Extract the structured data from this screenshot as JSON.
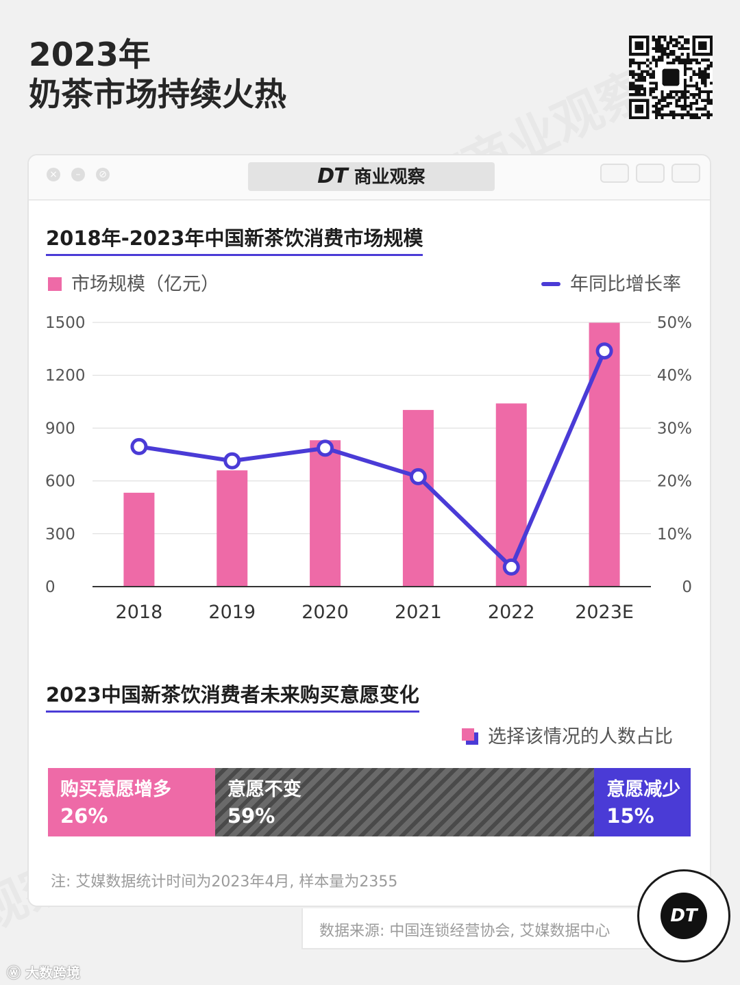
{
  "page": {
    "title_line1": "2023年",
    "title_line2": "奶茶市场持续火热"
  },
  "window": {
    "brand_logo": "DT",
    "brand_name": "商业观察"
  },
  "colors": {
    "bar": "#ee6aa7",
    "line": "#4a3bd6",
    "same": "#5a5a5a"
  },
  "chart_data": [
    {
      "type": "bar",
      "title": "2018年-2023年中国新茶饮消费市场规模",
      "categories": [
        "2018",
        "2019",
        "2020",
        "2021",
        "2022",
        "2023E"
      ],
      "series": [
        {
          "name": "市场规模（亿元）",
          "type": "bar",
          "axis": "left",
          "values": [
            533,
            660,
            831,
            1003,
            1040,
            1498
          ]
        },
        {
          "name": "年同比增长率",
          "type": "line",
          "axis": "right",
          "values": [
            26.5,
            23.8,
            26.2,
            20.8,
            3.7,
            44.6
          ]
        }
      ],
      "y_left": {
        "ticks": [
          "0",
          "300",
          "600",
          "900",
          "1200",
          "1500"
        ],
        "ylim": [
          0,
          1500
        ]
      },
      "y_right": {
        "ticks": [
          "0",
          "10%",
          "20%",
          "30%",
          "40%",
          "50%"
        ],
        "ylim": [
          0,
          50
        ]
      },
      "legend_position": "top"
    },
    {
      "type": "bar",
      "stacked": true,
      "title": "2023中国新茶饮消费者未来购买意愿变化",
      "legend": "选择该情况的人数占比",
      "segments": [
        {
          "label": "购买意愿增多",
          "value": 26,
          "value_label": "26%"
        },
        {
          "label": "意愿不变",
          "value": 59,
          "value_label": "59%"
        },
        {
          "label": "意愿减少",
          "value": 15,
          "value_label": "15%"
        }
      ]
    }
  ],
  "note": "注: 艾媒数据统计时间为2023年4月, 样本量为2355",
  "source": "数据来源: 中国连锁经营协会, 艾媒数据中心",
  "badge": "DT",
  "weibo_watermark": "大数跨境"
}
